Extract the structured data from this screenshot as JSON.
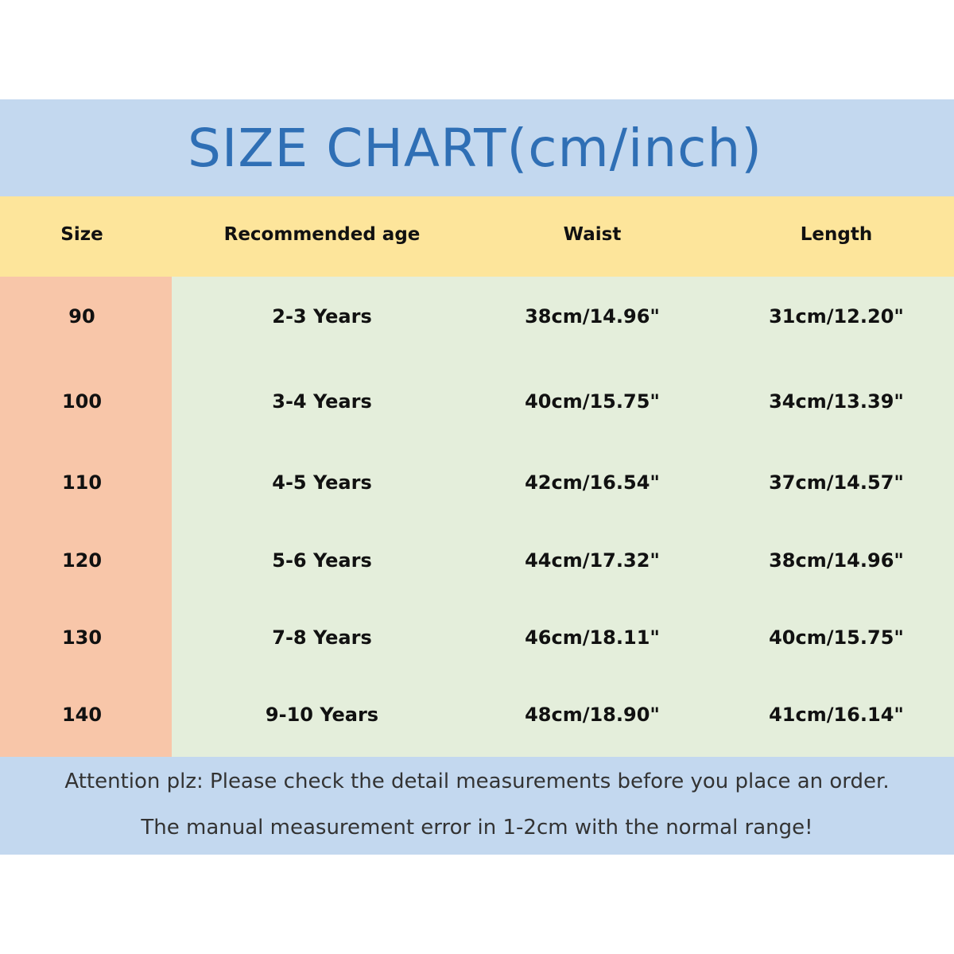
{
  "title": "SIZE CHART(cm/inch)",
  "colors": {
    "title_band": "#c3d8ef",
    "title_text": "#2f6fb5",
    "header_band": "#fde59b",
    "size_column": "#f8c6a9",
    "body": "#e4eedb",
    "footer_band": "#c3d8ef"
  },
  "headers": [
    "Size",
    "Recommended age",
    "Waist",
    "Length"
  ],
  "rows": [
    [
      "90",
      "2-3 Years",
      "38cm/14.96\"",
      "31cm/12.20\""
    ],
    [
      "100",
      "3-4 Years",
      "40cm/15.75\"",
      "34cm/13.39\""
    ],
    [
      "110",
      "4-5 Years",
      "42cm/16.54\"",
      "37cm/14.57\""
    ],
    [
      "120",
      "5-6 Years",
      "44cm/17.32\"",
      "38cm/14.96\""
    ],
    [
      "130",
      "7-8 Years",
      "46cm/18.11\"",
      "40cm/15.75\""
    ],
    [
      "140",
      "9-10 Years",
      "48cm/18.90\"",
      "41cm/16.14\""
    ]
  ],
  "notes": [
    "Attention plz:  Please check the detail measurements before you place an order.",
    "The manual measurement error in 1-2cm with the normal range!"
  ]
}
